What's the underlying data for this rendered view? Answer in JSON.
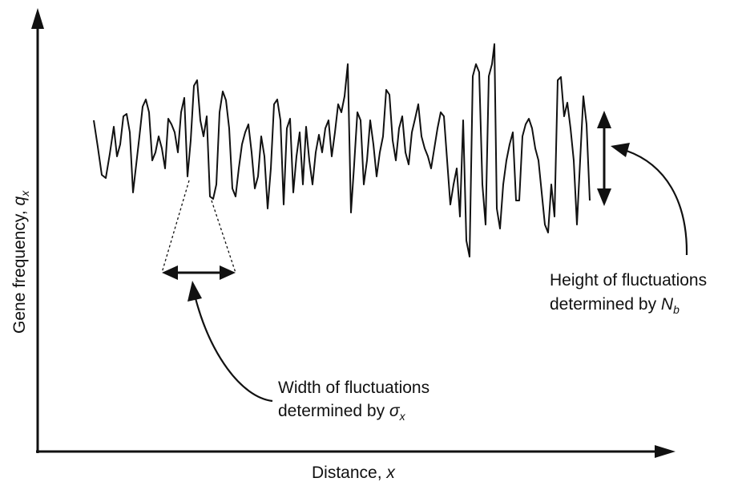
{
  "axes": {
    "x_label": "Distance, ",
    "x_symbol": "x",
    "y_label": "Gene frequency, ",
    "y_symbol": "q",
    "y_subscript": "x"
  },
  "annotations": {
    "width": {
      "line1": "Width of fluctuations",
      "line2": "determined by ",
      "symbol": "σ",
      "subscript": "x"
    },
    "height": {
      "line1": "Height of fluctuations",
      "line2": "determined by ",
      "symbol": "N",
      "subscript": "b"
    }
  },
  "colors": {
    "ink": "#111111",
    "background": "#ffffff"
  }
}
